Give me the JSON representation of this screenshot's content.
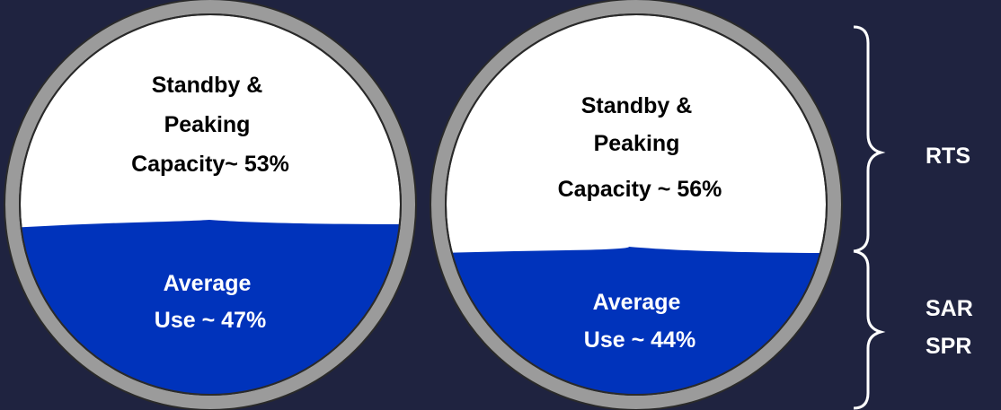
{
  "colors": {
    "background": "#1f2340",
    "rim": "#9b9b9b",
    "rim_edge": "#2a2a2a",
    "empty_capacity": "#ffffff",
    "water": "#0033bb",
    "bracket": "#ffffff"
  },
  "tanks": [
    {
      "top_label_lines": [
        "Standby &",
        "Peaking",
        "Capacity~ 53%"
      ],
      "bottom_label_lines": [
        "Average",
        "Use ~ 47%"
      ],
      "average_use_fraction": 0.47,
      "standby_peaking_fraction": 0.53
    },
    {
      "top_label_lines": [
        "Standby &",
        "Peaking",
        "Capacity ~ 56%"
      ],
      "bottom_label_lines": [
        "Average",
        "Use ~ 44%"
      ],
      "average_use_fraction": 0.44,
      "standby_peaking_fraction": 0.56
    }
  ],
  "brackets": {
    "upper_label_lines": [
      "RTS"
    ],
    "lower_label_lines": [
      "SAR",
      "SPR"
    ]
  }
}
